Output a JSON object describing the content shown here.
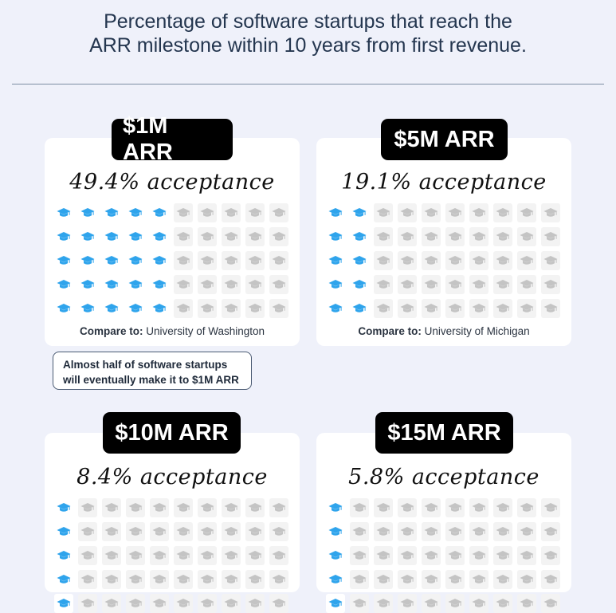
{
  "header": {
    "title_line1": "Percentage of software startups that reach the",
    "title_line2": "ARR milestone within 10 years from first revenue."
  },
  "colors": {
    "filled_icon": "#2fa4ec",
    "empty_icon": "#c4c4c4",
    "pill": "#000000",
    "background": "#eff1fa"
  },
  "icons": {
    "grid_icon": "graduation-cap-icon"
  },
  "cards": [
    {
      "milestone": "$1M ARR",
      "rate": "49.4% acceptance",
      "filled_per_row": 5,
      "compare_label": "Compare to:",
      "compare_value": " University of Washington"
    },
    {
      "milestone": "$5M ARR",
      "rate": "19.1% acceptance",
      "filled_per_row": 2,
      "compare_label": "Compare to:",
      "compare_value": " University of Michigan"
    },
    {
      "milestone": "$10M ARR",
      "rate": "8.4% acceptance",
      "filled_per_row": 1,
      "compare_label": "",
      "compare_value": ""
    },
    {
      "milestone": "$15M ARR",
      "rate": "5.8% acceptance",
      "filled_per_row": 1,
      "compare_label": "",
      "compare_value": ""
    }
  ],
  "callout": {
    "line1": "Almost half of software startups",
    "line2": "will eventually make it to $1M ARR"
  }
}
